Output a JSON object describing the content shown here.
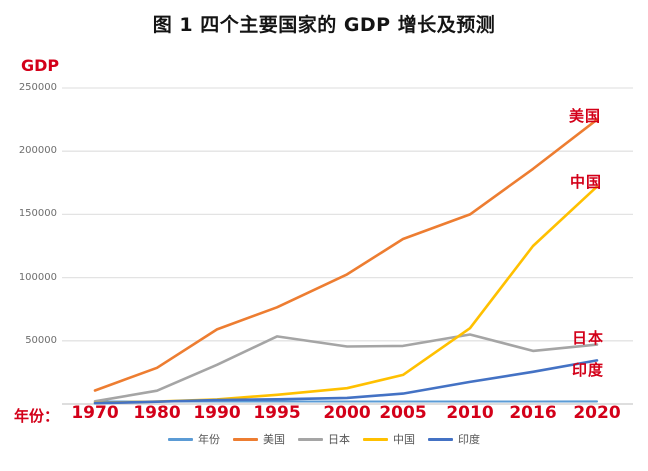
{
  "page": {
    "title": "图 1 四个主要国家的 GDP 增长及预测"
  },
  "colors": {
    "accent_red": "#d30019",
    "tick_gray": "#6e6e6e",
    "gridline": "#e3e3e3",
    "axis_line": "#c9c9c9",
    "legend_text": "#555555",
    "title_black": "#141414"
  },
  "chart_data": {
    "type": "line",
    "title": "图 1 四个主要国家的 GDP 增长及预测",
    "ylabel": "GDP",
    "xlabel": "年份：",
    "categories": [
      "1970",
      "1980",
      "1990",
      "1995",
      "2000",
      "2005",
      "2010",
      "2016",
      "2020"
    ],
    "yticks": [
      "50000",
      "100000",
      "150000",
      "200000",
      "250000"
    ],
    "ylim": [
      0,
      260000
    ],
    "grid": true,
    "legend_position": "bottom",
    "x_axis_note": "category axis, evenly spaced despite uneven year gaps",
    "series": [
      {
        "id": "year",
        "name": "年份",
        "color": "#5B9BD5",
        "values": [
          1970,
          1980,
          1990,
          1995,
          2000,
          2005,
          2010,
          2016,
          2020
        ]
      },
      {
        "id": "usa",
        "name": "美国",
        "color": "#ED7D31",
        "values": [
          10700,
          28600,
          59000,
          76500,
          102500,
          130500,
          150000,
          186000,
          225000
        ]
      },
      {
        "id": "japan",
        "name": "日本",
        "color": "#A5A5A5",
        "values": [
          2100,
          10500,
          31000,
          53500,
          45500,
          46000,
          55000,
          42000,
          47000
        ]
      },
      {
        "id": "china",
        "name": "中国",
        "color": "#FFC000",
        "values": [
          900,
          1900,
          3600,
          7300,
          12500,
          23000,
          60000,
          125000,
          172000
        ]
      },
      {
        "id": "india",
        "name": "印度",
        "color": "#4472C4",
        "values": [
          600,
          1800,
          3200,
          3700,
          4800,
          8200,
          17500,
          25500,
          34500
        ]
      }
    ],
    "annotations": [
      {
        "id": "usa",
        "text": "美国",
        "x": 569,
        "y": 105
      },
      {
        "id": "china",
        "text": "中国",
        "x": 570,
        "y": 171
      },
      {
        "id": "japan",
        "text": "日本",
        "x": 572,
        "y": 327
      },
      {
        "id": "india",
        "text": "印度",
        "x": 572,
        "y": 359
      }
    ]
  }
}
